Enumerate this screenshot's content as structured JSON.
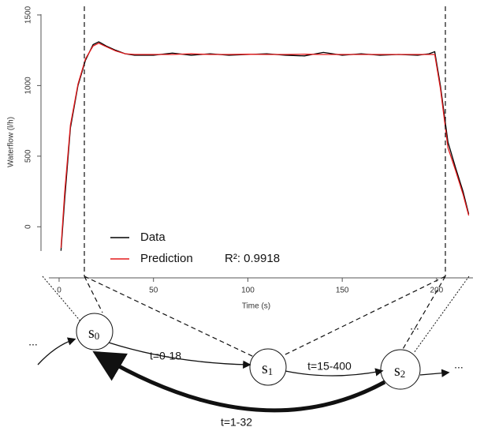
{
  "chart_data": {
    "type": "line",
    "x_label": "Time (s)",
    "y_label": "Waterflow (l/h)",
    "x": [
      1,
      3,
      6,
      10,
      14,
      18,
      21,
      25,
      30,
      35,
      40,
      50,
      60,
      70,
      80,
      90,
      100,
      110,
      120,
      130,
      140,
      150,
      160,
      170,
      180,
      190,
      196,
      199,
      202,
      206,
      210,
      214,
      217
    ],
    "series": [
      {
        "name": "Data",
        "color": "#000000",
        "values": [
          -170,
          200,
          700,
          1000,
          1180,
          1290,
          1310,
          1280,
          1250,
          1225,
          1215,
          1215,
          1230,
          1215,
          1225,
          1215,
          1220,
          1225,
          1215,
          1210,
          1235,
          1215,
          1225,
          1215,
          1220,
          1215,
          1225,
          1240,
          1000,
          600,
          420,
          250,
          90
        ]
      },
      {
        "name": "Prediction",
        "color": "#e41a1c",
        "values": [
          -150,
          250,
          720,
          1010,
          1190,
          1280,
          1300,
          1275,
          1245,
          1225,
          1220,
          1220,
          1220,
          1225,
          1220,
          1220,
          1222,
          1220,
          1220,
          1222,
          1220,
          1220,
          1220,
          1220,
          1220,
          1220,
          1220,
          1220,
          980,
          560,
          400,
          230,
          80
        ]
      }
    ],
    "annotation": "R²: 0.9918",
    "xlim": [
      -5,
      218
    ],
    "xticks": [
      0,
      50,
      100,
      150,
      200
    ],
    "ylim": [
      -250,
      1550
    ],
    "yticks": [
      0,
      500,
      1000,
      1500
    ]
  },
  "diagram": {
    "nodes": [
      {
        "label": "s",
        "subscript": "0"
      },
      {
        "label": "s",
        "subscript": "1"
      },
      {
        "label": "s",
        "subscript": "2"
      }
    ],
    "edges": [
      {
        "label": "t=0-18"
      },
      {
        "label": "t=15-400"
      },
      {
        "label": "t=1-32"
      }
    ],
    "ellipses": [
      "...",
      "...",
      "..."
    ]
  }
}
